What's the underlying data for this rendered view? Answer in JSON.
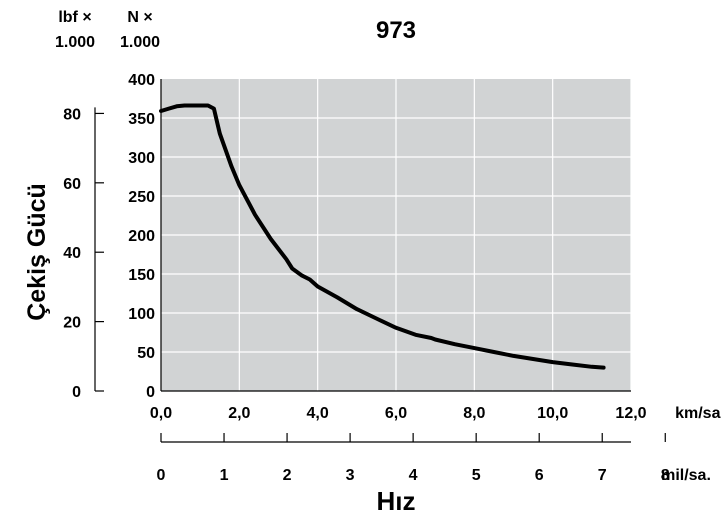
{
  "chart_data": {
    "type": "line",
    "title": "973",
    "ylabel": "Çekiş Gücü",
    "xlabel": "Hız",
    "x_unit_primary": "km/sa.",
    "x_unit_secondary": "mil/sa.",
    "y_unit_primary": "N × 1.000",
    "y_unit_secondary": "lbf × 1.000",
    "y_unit_primary_lines": [
      "N ×",
      "1.000"
    ],
    "y_unit_secondary_lines": [
      "lbf ×",
      "1.000"
    ],
    "xlim": [
      0,
      12
    ],
    "ylim": [
      0,
      400
    ],
    "x_ticks": [
      "0,0",
      "2,0",
      "4,0",
      "6,0",
      "8,0",
      "10,0",
      "12,0"
    ],
    "x_ticks_values": [
      0,
      2,
      4,
      6,
      8,
      10,
      12
    ],
    "y_ticks": [
      "0",
      "50",
      "100",
      "150",
      "200",
      "250",
      "300",
      "350",
      "400"
    ],
    "y_ticks_values": [
      0,
      50,
      100,
      150,
      200,
      250,
      300,
      350,
      400
    ],
    "y_secondary_ticks": [
      "0",
      "20",
      "40",
      "60",
      "80"
    ],
    "y_secondary_ticks_values": [
      0,
      20,
      40,
      60,
      80
    ],
    "x_secondary_ticks": [
      "0",
      "1",
      "2",
      "3",
      "4",
      "5",
      "6",
      "7",
      "8"
    ],
    "x_secondary_ticks_values": [
      0,
      1,
      2,
      3,
      4,
      5,
      6,
      7,
      8
    ],
    "grid": true,
    "background": "#d1d3d4",
    "line_color": "#000000",
    "series": [
      {
        "x": [
          0,
          0.2,
          0.4,
          0.6,
          0.8,
          1.0,
          1.2,
          1.35,
          1.5,
          1.8,
          2.0,
          2.4,
          2.8,
          3.2,
          3.35,
          3.6,
          3.8,
          4.0,
          4.5,
          5.0,
          5.5,
          6.0,
          6.5,
          6.9,
          7.0,
          7.5,
          8.0,
          8.5,
          9.0,
          9.5,
          10.0,
          10.5,
          11.0,
          11.3
        ],
        "y": [
          359,
          362,
          365,
          366,
          366,
          366,
          366,
          362,
          330,
          288,
          264,
          226,
          195,
          169,
          157,
          148,
          143,
          134,
          120,
          105,
          93,
          81,
          72,
          68,
          66,
          60,
          55,
          50,
          45,
          41,
          37,
          34,
          31,
          30
        ]
      }
    ]
  }
}
